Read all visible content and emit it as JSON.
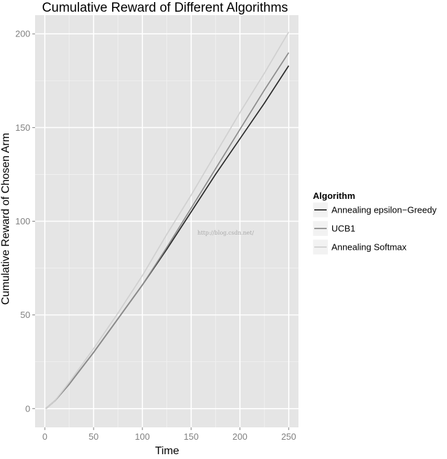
{
  "chart_data": {
    "type": "line",
    "title": "Cumulative Reward of Different Algorithms",
    "xlabel": "Time",
    "ylabel": "Cumulative Reward of Chosen Arm",
    "xlim": [
      -10,
      260
    ],
    "ylim": [
      -10,
      210
    ],
    "xticks": [
      0,
      50,
      100,
      150,
      200,
      250
    ],
    "yticks": [
      0,
      50,
      100,
      150,
      200
    ],
    "grid": true,
    "legend": {
      "title": "Algorithm",
      "placement": "right"
    },
    "series": [
      {
        "name": "Annealing epsilon−Greedy",
        "color": "#2a2a2a",
        "x": [
          1,
          10,
          25,
          50,
          75,
          100,
          125,
          150,
          175,
          200,
          225,
          250
        ],
        "y": [
          0,
          4,
          13,
          30,
          48,
          66,
          85,
          105,
          125,
          144,
          163,
          183
        ]
      },
      {
        "name": "UCB1",
        "color": "#8c8c8c",
        "x": [
          1,
          10,
          25,
          50,
          75,
          100,
          125,
          150,
          175,
          200,
          225,
          250
        ],
        "y": [
          0,
          4,
          13,
          30,
          48,
          66,
          86,
          107,
          128,
          149,
          170,
          190
        ]
      },
      {
        "name": "Annealing Softmax",
        "color": "#d0d0d0",
        "x": [
          1,
          10,
          25,
          50,
          75,
          100,
          125,
          150,
          175,
          200,
          225,
          250
        ],
        "y": [
          0,
          4,
          14,
          32,
          51,
          71,
          93,
          114,
          136,
          158,
          179,
          201
        ]
      }
    ]
  },
  "watermark": "http://blog.csdn.net/"
}
